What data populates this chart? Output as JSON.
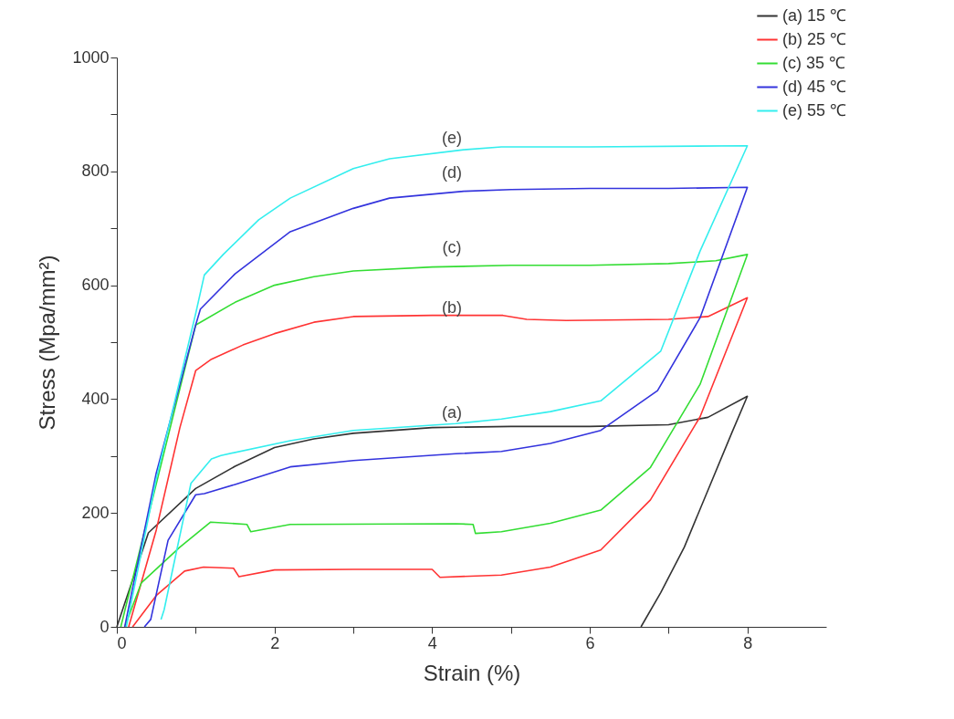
{
  "chart_data": {
    "type": "line",
    "xlabel": "Strain (%)",
    "ylabel": "Stress (Mpa/mm²)",
    "xlim": [
      0,
      9
    ],
    "ylim": [
      0,
      1000
    ],
    "xticks": [
      0,
      {
        "value": 1,
        "label": null
      },
      2,
      {
        "value": 3,
        "label": null
      },
      4,
      {
        "value": 5,
        "label": null
      },
      6,
      {
        "value": 7,
        "label": null
      },
      8
    ],
    "yticks": [
      0,
      {
        "value": 100,
        "label": null
      },
      200,
      {
        "value": 300,
        "label": null
      },
      400,
      {
        "value": 500,
        "label": null
      },
      600,
      {
        "value": 700,
        "label": null
      },
      800,
      {
        "value": 900,
        "label": null
      },
      1000
    ],
    "grid": false,
    "legend": "top right",
    "marker": "none",
    "line_style": "solid",
    "series": [
      {
        "name": "(a) 15 ℃",
        "color": "#333333",
        "x": [
          0,
          0.4,
          1,
          1.5,
          2,
          2.5,
          3,
          4,
          5,
          6,
          7,
          7.5,
          8,
          7.8,
          7.5,
          7.2,
          6.9,
          6.65
        ],
        "values": [
          0,
          165,
          243,
          282,
          315,
          330,
          340,
          350,
          352,
          352,
          355,
          368,
          405,
          340,
          240,
          140,
          60,
          0
        ]
      },
      {
        "name": "(b) 25 ℃",
        "color": "#ff3333",
        "x": [
          0.15,
          0.5,
          0.8,
          1,
          1.2,
          1.6,
          2,
          2.5,
          3,
          4,
          4.9,
          5.2,
          5.7,
          7,
          7.5,
          8,
          7.4,
          6.77,
          6.14,
          5.5,
          4.88,
          4.1,
          4,
          3,
          2,
          1.55,
          1.48,
          1.1,
          0.86,
          0.5,
          0.2
        ],
        "values": [
          0,
          170,
          350,
          450,
          470,
          495,
          515,
          535,
          545,
          547,
          547,
          540,
          538,
          540,
          545,
          578,
          369,
          223,
          135,
          105,
          91,
          87,
          101,
          101,
          100,
          88,
          103,
          105,
          98,
          55,
          0
        ]
      },
      {
        "name": "(c) 35 ℃",
        "color": "#33dd33",
        "x": [
          0.05,
          1,
          1.5,
          2,
          2.5,
          3,
          4,
          5,
          6,
          7,
          7.6,
          8,
          7.4,
          6.77,
          6.14,
          5.5,
          4.88,
          4.55,
          4.52,
          4.3,
          2.2,
          1.7,
          1.65,
          1.19,
          0.8,
          0.31,
          0.1
        ],
        "values": [
          0,
          530,
          570,
          600,
          615,
          625,
          632,
          635,
          635,
          638,
          643,
          654,
          426,
          280,
          205,
          182,
          167,
          164,
          180,
          181,
          180,
          167,
          180,
          184,
          140,
          77,
          0
        ]
      },
      {
        "name": "(d) 45 ℃",
        "color": "#3333dd",
        "x": [
          0.1,
          0.5,
          1,
          1.06,
          1.5,
          2.2,
          3,
          3.46,
          4.4,
          5,
          6,
          7,
          8,
          7.4,
          6.86,
          6.14,
          5.5,
          4.88,
          4.3,
          3,
          2.2,
          1.5,
          1.11,
          1,
          0.65,
          0.43,
          0.35
        ],
        "values": [
          0,
          270,
          530,
          558,
          620,
          694,
          735,
          753,
          765,
          768,
          770,
          770,
          772,
          543,
          415,
          345,
          322,
          308,
          304,
          292,
          281,
          250,
          234,
          232,
          152,
          13,
          0
        ]
      },
      {
        "name": "(e) 55 ℃",
        "color": "#33eeee",
        "x": [
          0.12,
          0.5,
          1,
          1.11,
          1.35,
          1.8,
          2.2,
          3,
          3.46,
          4.4,
          4.88,
          6,
          8,
          7.4,
          6.9,
          6.14,
          5.5,
          4.88,
          4.3,
          3,
          2.2,
          1.32,
          1.2,
          0.94,
          0.6,
          0.56
        ],
        "values": [
          0,
          260,
          550,
          618,
          654,
          715,
          753,
          805,
          822,
          838,
          843,
          843,
          845,
          660,
          484,
          397,
          378,
          365,
          357,
          345,
          327,
          301,
          295,
          252,
          30,
          13
        ]
      }
    ],
    "annotations": [
      "(e)",
      "(d)",
      "(c)",
      "(b)",
      "(a)"
    ]
  }
}
